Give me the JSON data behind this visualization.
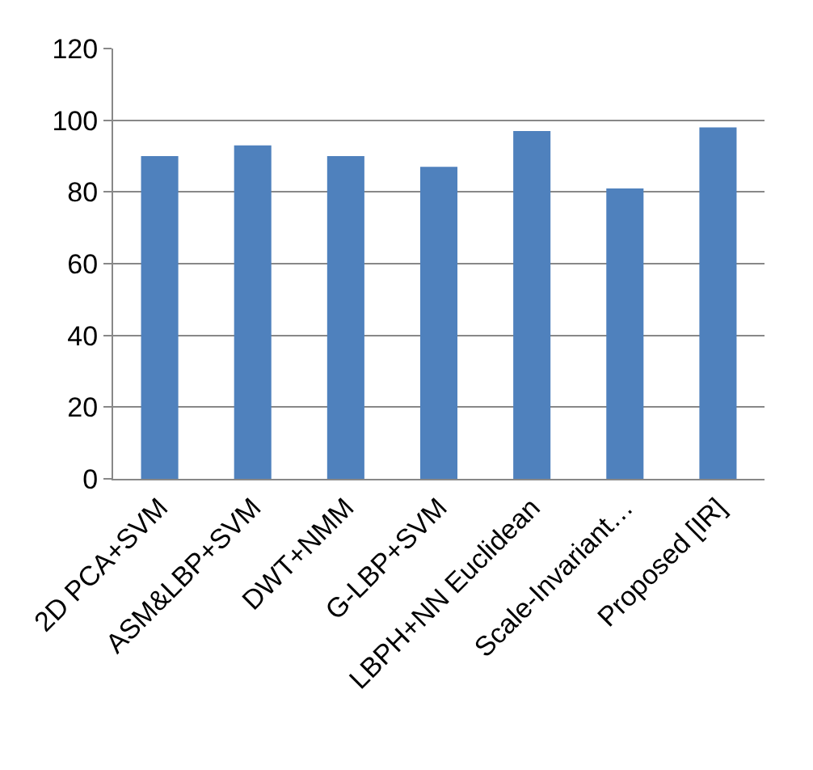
{
  "chart_data": {
    "type": "bar",
    "categories": [
      "2D PCA+SVM",
      "ASM&LBP+SVM",
      "DWT+NMM",
      "G-LBP+SVM",
      "LBPH+NN Euclidean",
      "Scale-Invariant…",
      "Proposed [IR]"
    ],
    "values": [
      90,
      93,
      90,
      87,
      97,
      81,
      98
    ],
    "color": "#4f81bd",
    "ylim": [
      0,
      120
    ],
    "yticks": [
      0,
      20,
      40,
      60,
      80,
      100,
      120
    ],
    "grid": "y"
  }
}
